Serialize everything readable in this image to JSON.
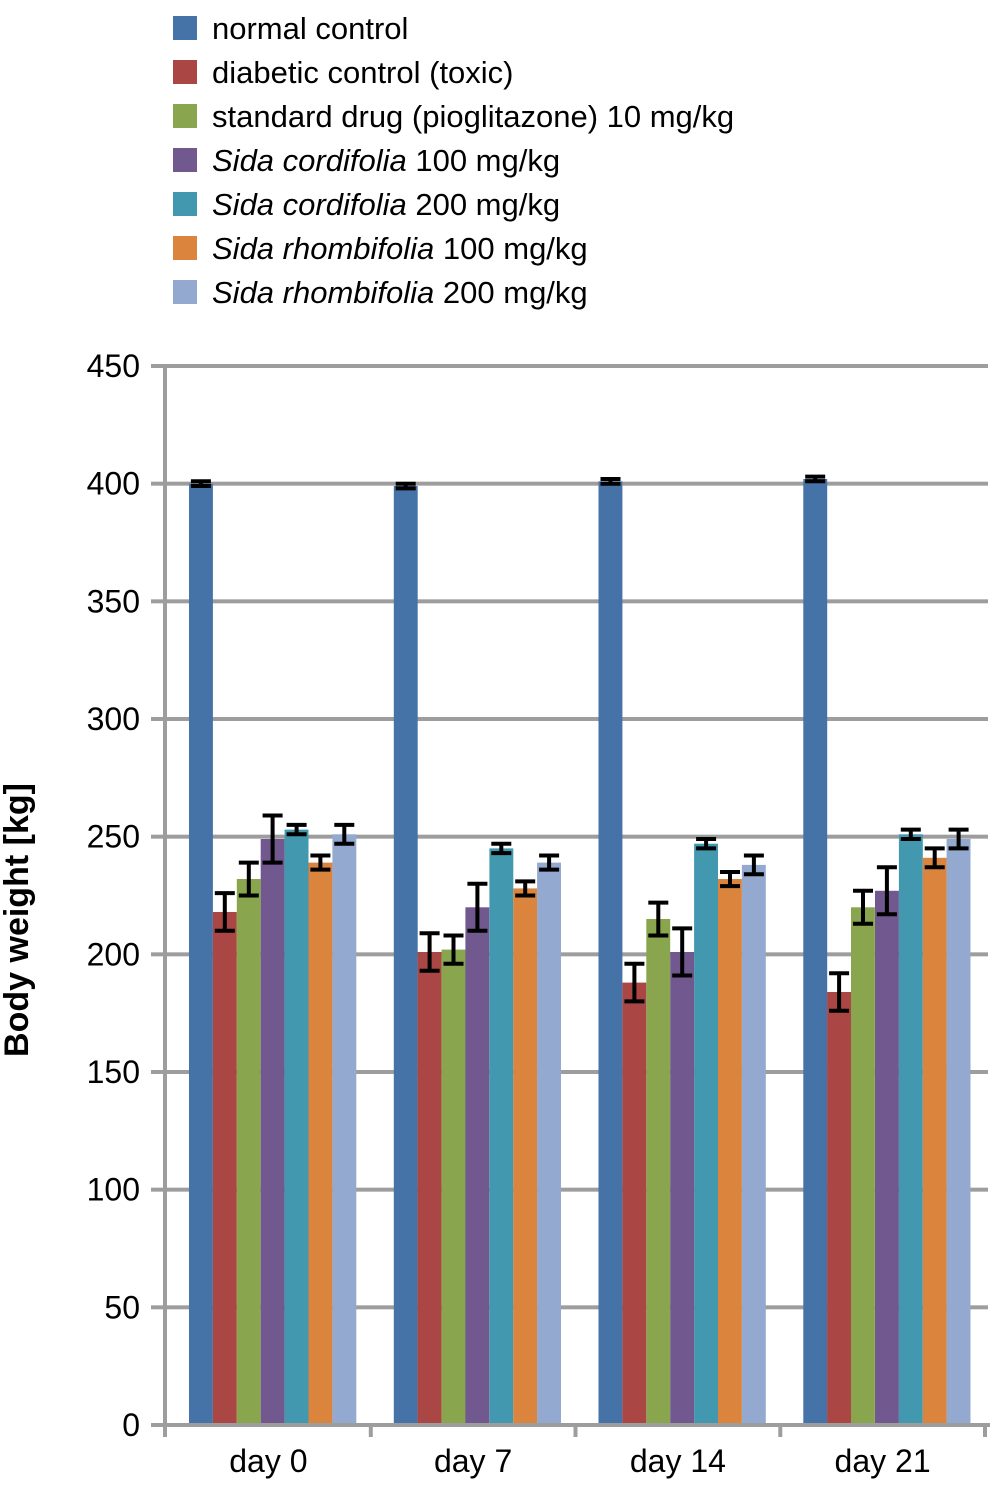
{
  "chart_data": {
    "type": "bar",
    "title": "",
    "xlabel": "",
    "ylabel": "Body weight [kg]",
    "ylim": [
      0,
      450
    ],
    "yticks": [
      0,
      50,
      100,
      150,
      200,
      250,
      300,
      350,
      400,
      450
    ],
    "grid": true,
    "legend_position": "top-left",
    "error_bars": true,
    "axis_color": "#9D9D9D",
    "error_bar_color": "#000000",
    "categories": [
      "day 0",
      "day 7",
      "day 14",
      "day 21"
    ],
    "series": [
      {
        "label": "normal control",
        "label_italic": "",
        "label_rest": "normal control",
        "color": "#4572A7",
        "values": [
          400,
          399,
          401,
          402
        ],
        "errors": [
          1,
          1,
          1,
          1
        ]
      },
      {
        "label": "diabetic control (toxic)",
        "label_italic": "",
        "label_rest": "diabetic control (toxic)",
        "color": "#AA4643",
        "values": [
          218,
          201,
          188,
          184
        ],
        "errors": [
          8,
          8,
          8,
          8
        ]
      },
      {
        "label": "standard drug (pioglitazone) 10 mg/kg",
        "label_italic": "",
        "label_rest": "standard drug (pioglitazone) 10 mg/kg",
        "color": "#89A54E",
        "values": [
          232,
          202,
          215,
          220
        ],
        "errors": [
          7,
          6,
          7,
          7
        ]
      },
      {
        "label": "Sida cordifolia 100 mg/kg",
        "label_italic": "Sida cordifolia",
        "label_rest": " 100 mg/kg",
        "color": "#71588F",
        "values": [
          249,
          220,
          201,
          227
        ],
        "errors": [
          10,
          10,
          10,
          10
        ]
      },
      {
        "label": "Sida cordifolia 200 mg/kg",
        "label_italic": "Sida cordifolia",
        "label_rest": " 200 mg/kg",
        "color": "#4198AF",
        "values": [
          253,
          245,
          247,
          251
        ],
        "errors": [
          2,
          2,
          2,
          2
        ]
      },
      {
        "label": "Sida rhombifolia 100 mg/kg",
        "label_italic": "Sida rhombifolia",
        "label_rest": " 100 mg/kg",
        "color": "#DB843D",
        "values": [
          239,
          228,
          232,
          241
        ],
        "errors": [
          3,
          3,
          3,
          4
        ]
      },
      {
        "label": "Sida rhombifolia 200 mg/kg",
        "label_italic": "Sida rhombifolia",
        "label_rest": " 200 mg/kg",
        "color": "#93A9CF",
        "values": [
          251,
          239,
          238,
          249
        ],
        "errors": [
          4,
          3,
          4,
          4
        ]
      }
    ]
  }
}
